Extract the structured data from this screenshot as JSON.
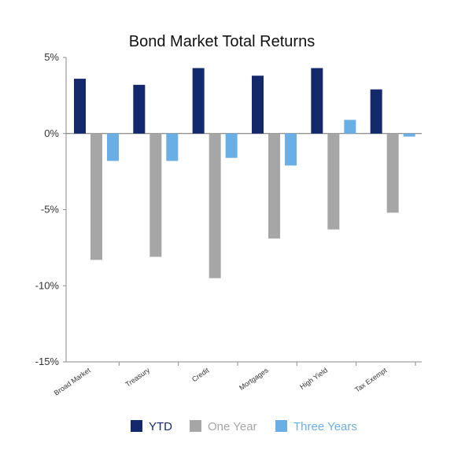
{
  "chart_data": {
    "type": "bar",
    "title": "Bond Market Total Returns",
    "categories": [
      "Broad Market",
      "Treasury",
      "Credit",
      "Mortgages",
      "High Yield",
      "Tax Exempt"
    ],
    "series": [
      {
        "name": "YTD",
        "color": "#14296b",
        "values": [
          3.6,
          3.2,
          4.3,
          3.8,
          4.3,
          2.9
        ]
      },
      {
        "name": "One Year",
        "color": "#a6a6a6",
        "values": [
          -8.3,
          -8.1,
          -9.5,
          -6.9,
          -6.3,
          -5.2
        ]
      },
      {
        "name": "Three Years",
        "color": "#6aaee6",
        "values": [
          -1.8,
          -1.8,
          -1.6,
          -2.1,
          0.9,
          -0.2
        ]
      }
    ],
    "ylim": [
      -15,
      5
    ],
    "yticks": [
      5,
      0,
      -5,
      -10,
      -15
    ],
    "ytick_labels": [
      "5%",
      "0%",
      "-5%",
      "-10%",
      "-15%"
    ],
    "xlabel": "",
    "ylabel": "",
    "legend_position": "bottom",
    "grid": false
  }
}
